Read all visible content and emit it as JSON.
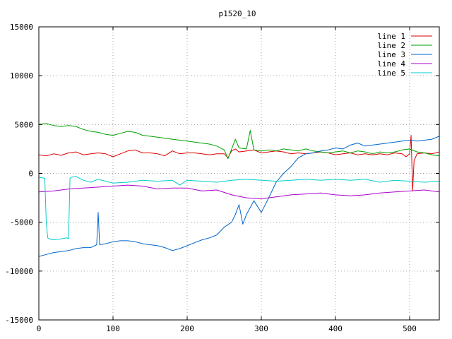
{
  "chart_data": {
    "type": "line",
    "title": "p1520_10",
    "xlim": [
      0,
      540
    ],
    "ylim": [
      -15000,
      15000
    ],
    "xticks": [
      0,
      100,
      200,
      300,
      400,
      500
    ],
    "yticks": [
      -15000,
      -10000,
      -5000,
      0,
      5000,
      10000,
      15000
    ],
    "grid": true,
    "legend_position": "top-right",
    "series": [
      {
        "name": "line 1",
        "color": "#dd0000",
        "x": [
          0,
          10,
          20,
          30,
          40,
          50,
          60,
          70,
          80,
          90,
          100,
          110,
          120,
          130,
          140,
          150,
          160,
          170,
          180,
          190,
          200,
          210,
          220,
          230,
          240,
          250,
          255,
          260,
          265,
          270,
          280,
          290,
          300,
          310,
          320,
          330,
          340,
          350,
          360,
          370,
          380,
          390,
          400,
          410,
          420,
          430,
          440,
          450,
          460,
          470,
          480,
          490,
          495,
          500,
          502,
          504,
          506,
          510,
          520,
          530,
          540
        ],
        "y": [
          1900,
          1800,
          2000,
          1850,
          2100,
          2200,
          1900,
          2000,
          2100,
          2000,
          1700,
          2000,
          2300,
          2400,
          2100,
          2100,
          2000,
          1800,
          2300,
          2000,
          2100,
          2100,
          2000,
          1900,
          2000,
          2000,
          1600,
          2300,
          2500,
          2200,
          2300,
          2400,
          2100,
          2200,
          2300,
          2200,
          2000,
          2100,
          2000,
          2100,
          2200,
          2100,
          1900,
          2000,
          2100,
          1900,
          2000,
          1900,
          2000,
          1900,
          2100,
          2000,
          1700,
          2000,
          3900,
          -1800,
          1300,
          2000,
          2100,
          2000,
          2200
        ]
      },
      {
        "name": "line 2",
        "color": "#00a000",
        "x": [
          0,
          10,
          20,
          30,
          40,
          50,
          60,
          70,
          80,
          90,
          100,
          110,
          120,
          130,
          140,
          150,
          160,
          170,
          180,
          190,
          200,
          210,
          220,
          230,
          240,
          250,
          255,
          260,
          265,
          270,
          280,
          285,
          290,
          300,
          310,
          320,
          330,
          340,
          350,
          360,
          370,
          380,
          390,
          400,
          410,
          420,
          430,
          440,
          450,
          460,
          470,
          480,
          490,
          500,
          510,
          520,
          530,
          540
        ],
        "y": [
          5000,
          5100,
          4900,
          4800,
          4900,
          4800,
          4500,
          4300,
          4200,
          4000,
          3900,
          4100,
          4300,
          4200,
          3900,
          3800,
          3700,
          3600,
          3500,
          3400,
          3300,
          3200,
          3100,
          3000,
          2800,
          2400,
          1500,
          2500,
          3500,
          2600,
          2500,
          4400,
          2400,
          2300,
          2400,
          2300,
          2500,
          2400,
          2300,
          2500,
          2300,
          2200,
          2100,
          2200,
          2300,
          2100,
          2300,
          2200,
          2000,
          2200,
          2100,
          2200,
          2400,
          2500,
          2200,
          2100,
          1900,
          1800
        ]
      },
      {
        "name": "line 3",
        "color": "#0066cc",
        "x": [
          0,
          10,
          20,
          30,
          40,
          50,
          60,
          70,
          78,
          80,
          82,
          90,
          100,
          110,
          120,
          130,
          140,
          150,
          160,
          170,
          180,
          190,
          200,
          210,
          220,
          230,
          240,
          250,
          260,
          265,
          270,
          275,
          280,
          290,
          300,
          310,
          320,
          330,
          340,
          350,
          360,
          370,
          380,
          390,
          400,
          410,
          420,
          430,
          440,
          450,
          460,
          470,
          480,
          490,
          500,
          510,
          520,
          530,
          540
        ],
        "y": [
          -8500,
          -8300,
          -8100,
          -8000,
          -7900,
          -7700,
          -7600,
          -7600,
          -7300,
          -4000,
          -7300,
          -7200,
          -7000,
          -6900,
          -6900,
          -7000,
          -7200,
          -7300,
          -7400,
          -7600,
          -7900,
          -7700,
          -7400,
          -7100,
          -6800,
          -6600,
          -6300,
          -5500,
          -5000,
          -4200,
          -3200,
          -5200,
          -4200,
          -2800,
          -4000,
          -2500,
          -900,
          0,
          700,
          1600,
          2000,
          2100,
          2300,
          2400,
          2600,
          2500,
          2900,
          3100,
          2800,
          2900,
          3000,
          3100,
          3200,
          3300,
          3400,
          3300,
          3400,
          3500,
          3800
        ]
      },
      {
        "name": "line 4",
        "color": "#aa00cc",
        "x": [
          0,
          20,
          40,
          60,
          80,
          100,
          120,
          140,
          160,
          180,
          200,
          220,
          240,
          260,
          280,
          300,
          320,
          340,
          360,
          380,
          400,
          420,
          440,
          460,
          480,
          500,
          520,
          540
        ],
        "y": [
          -1900,
          -1800,
          -1600,
          -1500,
          -1400,
          -1300,
          -1200,
          -1300,
          -1600,
          -1500,
          -1500,
          -1800,
          -1700,
          -2200,
          -2500,
          -2600,
          -2400,
          -2200,
          -2100,
          -2000,
          -2200,
          -2300,
          -2200,
          -2000,
          -1900,
          -1800,
          -1700,
          -1900
        ]
      },
      {
        "name": "line 5",
        "color": "#00cccc",
        "x": [
          0,
          8,
          10,
          12,
          14,
          20,
          30,
          38,
          40,
          42,
          44,
          50,
          60,
          70,
          80,
          90,
          100,
          120,
          140,
          160,
          180,
          190,
          200,
          220,
          240,
          260,
          280,
          300,
          320,
          340,
          360,
          380,
          400,
          420,
          440,
          460,
          480,
          500,
          520,
          540
        ],
        "y": [
          -400,
          -500,
          -5000,
          -6600,
          -6700,
          -6800,
          -6700,
          -6600,
          -6700,
          -500,
          -400,
          -300,
          -700,
          -900,
          -600,
          -800,
          -1000,
          -900,
          -700,
          -800,
          -700,
          -1200,
          -700,
          -800,
          -900,
          -700,
          -600,
          -700,
          -800,
          -700,
          -600,
          -700,
          -600,
          -700,
          -600,
          -900,
          -700,
          -800,
          -900,
          -800
        ]
      }
    ]
  }
}
